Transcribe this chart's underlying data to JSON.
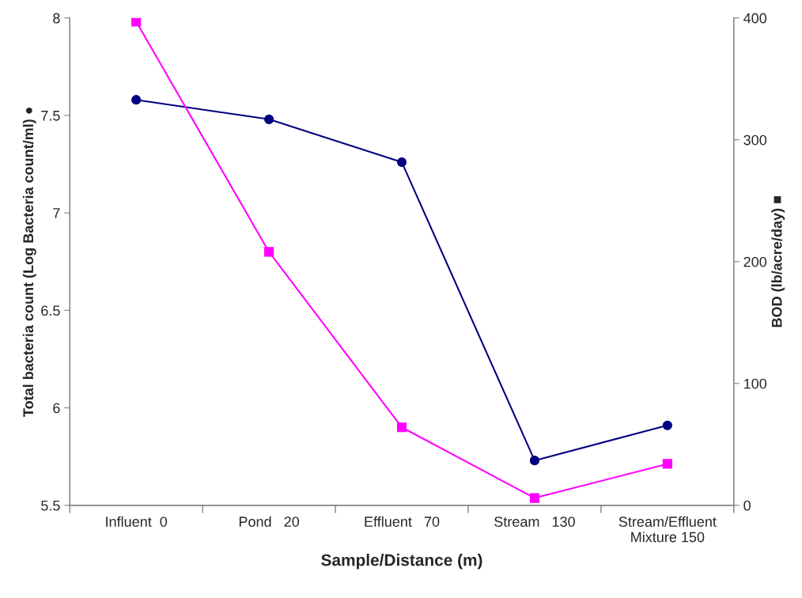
{
  "chart_data": {
    "type": "line",
    "xlabel": "Sample/Distance (m)",
    "ylabel": "Total bacteria count (Log Bacteria count/ml) ●",
    "y2label": "BOD (lb/acre/day) ■",
    "categories": [
      "Influent  0",
      "Pond   20",
      "Effluent   70",
      "Stream   130",
      "Stream/Effluent\nMixture 150"
    ],
    "series": [
      {
        "color": "#000080",
        "marker": "circle",
        "values": [
          7.58,
          7.48,
          7.26,
          5.73,
          5.91
        ]
      },
      {
        "color": "#ff00ff",
        "marker": "square",
        "axis": "y2",
        "values": [
          397,
          208,
          64,
          6,
          34
        ]
      }
    ],
    "ylim": [
      5.5,
      8
    ],
    "yticks": [
      5.5,
      6,
      6.5,
      7,
      7.5,
      8
    ],
    "y2lim": [
      0,
      400
    ],
    "y2ticks": [
      0,
      100,
      200,
      300,
      400
    ],
    "grid": false
  }
}
